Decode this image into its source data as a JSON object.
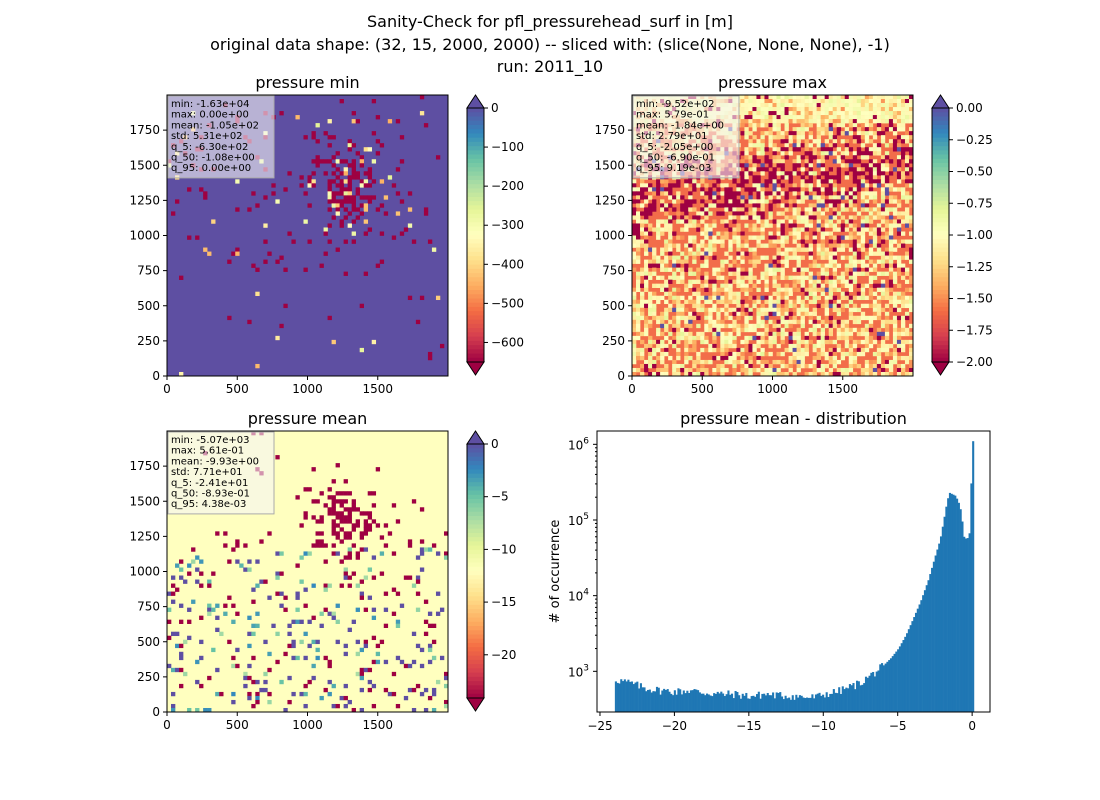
{
  "figure": {
    "title_line1": "Sanity-Check for pfl_pressurehead_surf in [m]",
    "title_line2": "original data shape: (32, 15, 2000, 2000) -- sliced with: (slice(None, None, None), -1)",
    "title_line3": "run: 2011_10"
  },
  "chart_data": [
    {
      "type": "heatmap",
      "title": "pressure min",
      "xlim": [
        0,
        2000
      ],
      "ylim": [
        0,
        2000
      ],
      "xticks": [
        0,
        500,
        1000,
        1500
      ],
      "yticks": [
        0,
        250,
        500,
        750,
        1000,
        1250,
        1500,
        1750
      ],
      "colormap": "Spectral",
      "colorbar": {
        "vmin": -650,
        "vmax": 0,
        "ticks": [
          0,
          -100,
          -200,
          -300,
          -400,
          -500,
          -600
        ],
        "extend": "both"
      },
      "dominant_color": "#5e4fa2",
      "stats_box": [
        "min: -1.63e+04",
        "max: 0.00e+00",
        "mean: -1.05e+02",
        "std: 5.31e+02",
        "q_5: -6.30e+02",
        "q_50: -1.08e+00",
        "q_95: 0.00e+00"
      ]
    },
    {
      "type": "heatmap",
      "title": "pressure max",
      "xlim": [
        0,
        2000
      ],
      "ylim": [
        0,
        2000
      ],
      "xticks": [
        0,
        500,
        1000,
        1500
      ],
      "yticks": [
        0,
        250,
        500,
        750,
        1000,
        1250,
        1500,
        1750
      ],
      "colormap": "Spectral",
      "colorbar": {
        "vmin": -2.0,
        "vmax": 0.0,
        "ticks": [
          0.0,
          -0.25,
          -0.5,
          -0.75,
          -1.0,
          -1.25,
          -1.5,
          -1.75,
          -2.0
        ],
        "tick_labels": [
          "0.00",
          "−0.25",
          "−0.50",
          "−0.75",
          "−1.00",
          "−1.25",
          "−1.50",
          "−1.75",
          "−2.00"
        ],
        "extend": "both"
      },
      "dominant_color": "#f26d4a",
      "stats_box": [
        "min: -9.52e+02",
        "max: 5.79e-01",
        "mean: -1.84e+00",
        "std: 2.79e+01",
        "q_5: -2.05e+00",
        "q_50: -6.90e-01",
        "q_95: 9.19e-03"
      ]
    },
    {
      "type": "heatmap",
      "title": "pressure mean",
      "xlim": [
        0,
        2000
      ],
      "ylim": [
        0,
        2000
      ],
      "xticks": [
        0,
        500,
        1000,
        1500
      ],
      "yticks": [
        0,
        250,
        500,
        750,
        1000,
        1250,
        1500,
        1750
      ],
      "colormap": "Spectral",
      "colorbar": {
        "vmin": -24.1,
        "vmax": 0,
        "ticks": [
          0,
          -5,
          -10,
          -15,
          -20
        ],
        "extend": "both"
      },
      "dominant_color": "#ffffbf",
      "stats_box": [
        "min: -5.07e+03",
        "max: 5.61e-01",
        "mean: -9.93e+00",
        "std: 7.71e+01",
        "q_5: -2.41e+01",
        "q_50: -8.93e-01",
        "q_95: 4.38e-03"
      ]
    },
    {
      "type": "bar",
      "title": "pressure mean - distribution",
      "xlabel": "",
      "ylabel": "# of occurrence",
      "xlim": [
        -25.2,
        1.2
      ],
      "ylim": [
        290,
        1500000
      ],
      "yscale": "log",
      "xticks": [
        -25,
        -20,
        -15,
        -10,
        -5,
        0
      ],
      "xtick_labels": [
        "−25",
        "−20",
        "−15",
        "−10",
        "−5",
        "0"
      ],
      "yticks": [
        1000,
        10000,
        100000,
        1000000
      ],
      "ytick_labels": [
        [
          "10",
          "3"
        ],
        [
          "10",
          "4"
        ],
        [
          "10",
          "5"
        ],
        [
          "10",
          "6"
        ]
      ],
      "bar_color": "#1f77b4",
      "bin_width": 0.12,
      "x": [
        -24,
        -23,
        -22,
        -21,
        -20,
        -19,
        -18,
        -17,
        -16,
        -15,
        -14.5,
        -14,
        -13,
        -12,
        -11,
        -10.5,
        -10,
        -9.5,
        -9,
        -8.5,
        -8,
        -7.5,
        -7,
        -6.5,
        -6,
        -5.5,
        -5,
        -4.5,
        -4,
        -3.5,
        -3,
        -2.5,
        -2.2,
        -2,
        -1.8,
        -1.6,
        -1.4,
        -1.2,
        -1.0,
        -0.8,
        -0.6,
        -0.4,
        -0.2,
        -0.05
      ],
      "values": [
        780,
        700,
        600,
        560,
        540,
        560,
        520,
        500,
        500,
        470,
        480,
        500,
        480,
        470,
        450,
        460,
        500,
        520,
        550,
        600,
        650,
        720,
        850,
        1000,
        1200,
        1500,
        2000,
        3000,
        5000,
        8500,
        16000,
        35000,
        55000,
        90000,
        150000,
        230000,
        220000,
        210000,
        180000,
        130000,
        60000,
        55000,
        70000,
        1100000
      ]
    }
  ]
}
